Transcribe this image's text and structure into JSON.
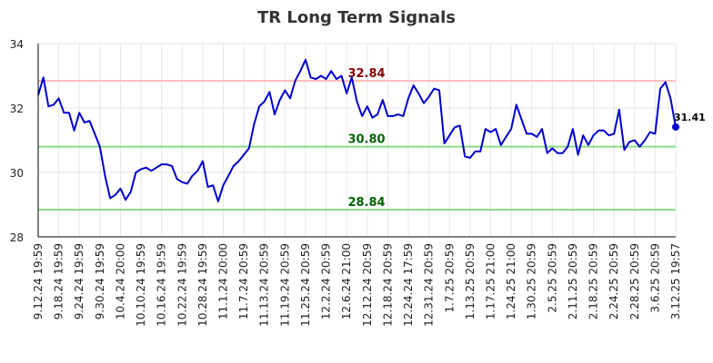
{
  "chart_data": {
    "type": "line",
    "title": "TR Long Term Signals",
    "ylim": [
      28,
      34
    ],
    "yticks": [
      "28",
      "30",
      "32",
      "34"
    ],
    "grid": true,
    "x_tick_labels": [
      "9.12.24 19:59",
      "9.18.24 19:59",
      "9.24.24 19:59",
      "9.30.24 19:59",
      "10.4.24 20:00",
      "10.10.24 19:59",
      "10.16.24 19:59",
      "10.22.24 19:59",
      "10.28.24 19:59",
      "11.1.24 20:00",
      "11.7.24 20:59",
      "11.13.24 20:59",
      "11.19.24 20:59",
      "11.25.24 20:59",
      "12.2.24 20:59",
      "12.6.24 21:00",
      "12.12.24 20:59",
      "12.18.24 20:59",
      "12.24.24 17:59",
      "12.31.24 20:59",
      "1.7.25 20:59",
      "1.13.25 20:59",
      "1.17.25 21:00",
      "1.24.25 21:00",
      "1.30.25 20:59",
      "2.5.25 20:59",
      "2.11.25 20:59",
      "2.18.25 20:59",
      "2.24.25 20:59",
      "2.28.25 20:59",
      "3.6.25 20:59",
      "3.12.25 19:57"
    ],
    "series": [
      {
        "color": "#0000cc",
        "values": [
          32.4,
          32.95,
          32.05,
          32.1,
          32.3,
          31.85,
          31.85,
          31.3,
          31.85,
          31.55,
          31.6,
          31.2,
          30.8,
          29.9,
          29.2,
          29.3,
          29.5,
          29.15,
          29.4,
          30.0,
          30.1,
          30.15,
          30.05,
          30.15,
          30.25,
          30.25,
          30.2,
          29.8,
          29.7,
          29.65,
          29.9,
          30.05,
          30.35,
          29.55,
          29.6,
          29.1,
          29.6,
          29.9,
          30.2,
          30.35,
          30.55,
          30.75,
          31.5,
          32.05,
          32.2,
          32.5,
          31.8,
          32.25,
          32.55,
          32.3,
          32.85,
          33.15,
          33.5,
          32.95,
          32.9,
          33.0,
          32.9,
          33.15,
          32.9,
          33.0,
          32.45,
          32.95,
          32.2,
          31.75,
          32.05,
          31.7,
          31.8,
          32.25,
          31.75,
          31.75,
          31.8,
          31.75,
          32.3,
          32.7,
          32.45,
          32.15,
          32.35,
          32.6,
          32.55,
          30.9,
          31.15,
          31.4,
          31.45,
          30.5,
          30.45,
          30.65,
          30.65,
          31.35,
          31.25,
          31.35,
          30.85,
          31.1,
          31.35,
          32.1,
          31.65,
          31.2,
          31.2,
          31.1,
          31.35,
          30.6,
          30.75,
          30.6,
          30.6,
          30.8,
          31.35,
          30.55,
          31.15,
          30.85,
          31.15,
          31.3,
          31.3,
          31.15,
          31.2,
          31.95,
          30.7,
          30.95,
          31.0,
          30.8,
          31.0,
          31.25,
          31.2,
          32.6,
          32.8,
          32.3,
          31.41
        ]
      }
    ],
    "reference_lines": [
      {
        "value": 32.84,
        "label": "32.84",
        "line_color": "#ffbbbb",
        "text_color": "#8b0000"
      },
      {
        "value": 30.8,
        "label": "30.80",
        "line_color": "#88dd88",
        "text_color": "#006400"
      },
      {
        "value": 28.84,
        "label": "28.84",
        "line_color": "#88dd88",
        "text_color": "#006400"
      }
    ],
    "last_value": {
      "value": 31.41,
      "label": "31.41"
    }
  }
}
